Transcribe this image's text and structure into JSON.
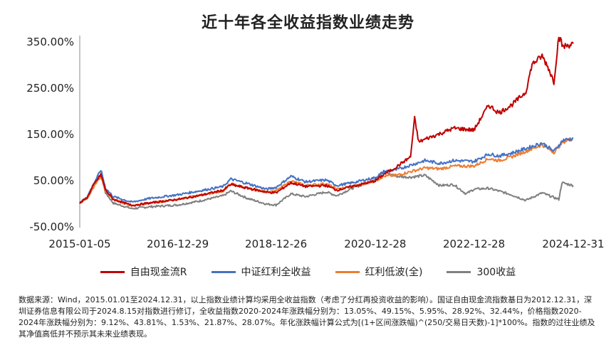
{
  "chart_data": {
    "type": "line",
    "title": "近十年各全收益指数业绩走势",
    "xlabel": "",
    "ylabel": "",
    "x_ticks": [
      "2015-01-05",
      "2016-12-29",
      "2018-12-26",
      "2020-12-28",
      "2022-12-28",
      "2024-12-31"
    ],
    "y_ticks": [
      "350.00%",
      "250.00%",
      "150.00%",
      "50.00%",
      "-50.00%"
    ],
    "ylim": [
      -50,
      350
    ],
    "xlim": [
      "2015-01-05",
      "2024-12-31"
    ],
    "grid": false,
    "legend_position": "bottom",
    "series": [
      {
        "name": "自由现金流R",
        "color": "#c00000",
        "points": [
          [
            "2015-01-05",
            0
          ],
          [
            "2015-03-01",
            12
          ],
          [
            "2015-04-15",
            38
          ],
          [
            "2015-06-10",
            62
          ],
          [
            "2015-07-15",
            28
          ],
          [
            "2015-09-10",
            8
          ],
          [
            "2016-01-25",
            -5
          ],
          [
            "2016-06-01",
            0
          ],
          [
            "2016-12-29",
            8
          ],
          [
            "2017-06-01",
            16
          ],
          [
            "2017-12-01",
            28
          ],
          [
            "2018-01-25",
            40
          ],
          [
            "2018-06-01",
            32
          ],
          [
            "2018-10-15",
            24
          ],
          [
            "2018-12-26",
            22
          ],
          [
            "2019-04-15",
            44
          ],
          [
            "2019-08-01",
            36
          ],
          [
            "2019-12-31",
            38
          ],
          [
            "2020-03-20",
            28
          ],
          [
            "2020-07-10",
            36
          ],
          [
            "2020-12-28",
            48
          ],
          [
            "2021-03-01",
            62
          ],
          [
            "2021-06-01",
            78
          ],
          [
            "2021-09-15",
            100
          ],
          [
            "2021-10-15",
            183
          ],
          [
            "2021-11-15",
            132
          ],
          [
            "2022-01-15",
            140
          ],
          [
            "2022-04-20",
            150
          ],
          [
            "2022-08-01",
            162
          ],
          [
            "2022-12-28",
            158
          ],
          [
            "2023-04-15",
            212
          ],
          [
            "2023-07-01",
            195
          ],
          [
            "2023-10-01",
            212
          ],
          [
            "2024-01-15",
            240
          ],
          [
            "2024-03-01",
            300
          ],
          [
            "2024-05-15",
            318
          ],
          [
            "2024-07-01",
            292
          ],
          [
            "2024-08-10",
            262
          ],
          [
            "2024-09-15",
            362
          ],
          [
            "2024-10-15",
            338
          ],
          [
            "2024-12-31",
            345
          ]
        ]
      },
      {
        "name": "中证红利全收益",
        "color": "#4472c4",
        "points": [
          [
            "2015-01-05",
            0
          ],
          [
            "2015-03-01",
            14
          ],
          [
            "2015-04-15",
            40
          ],
          [
            "2015-06-10",
            72
          ],
          [
            "2015-07-15",
            32
          ],
          [
            "2015-09-10",
            14
          ],
          [
            "2016-01-25",
            2
          ],
          [
            "2016-06-01",
            10
          ],
          [
            "2016-12-29",
            18
          ],
          [
            "2017-06-01",
            26
          ],
          [
            "2017-12-01",
            36
          ],
          [
            "2018-01-25",
            52
          ],
          [
            "2018-06-01",
            42
          ],
          [
            "2018-10-15",
            30
          ],
          [
            "2018-12-26",
            34
          ],
          [
            "2019-04-15",
            58
          ],
          [
            "2019-08-01",
            46
          ],
          [
            "2019-12-31",
            50
          ],
          [
            "2020-03-20",
            38
          ],
          [
            "2020-07-10",
            44
          ],
          [
            "2020-12-28",
            55
          ],
          [
            "2021-03-01",
            68
          ],
          [
            "2021-06-01",
            72
          ],
          [
            "2021-09-15",
            82
          ],
          [
            "2021-12-31",
            92
          ],
          [
            "2022-04-20",
            86
          ],
          [
            "2022-08-01",
            92
          ],
          [
            "2022-12-28",
            90
          ],
          [
            "2023-04-15",
            106
          ],
          [
            "2023-07-01",
            102
          ],
          [
            "2023-10-01",
            108
          ],
          [
            "2024-01-15",
            118
          ],
          [
            "2024-05-15",
            130
          ],
          [
            "2024-08-10",
            112
          ],
          [
            "2024-10-15",
            136
          ],
          [
            "2024-12-31",
            140
          ]
        ]
      },
      {
        "name": "红利低波(全)",
        "color": "#ed7d31",
        "points": [
          [
            "2015-01-05",
            0
          ],
          [
            "2015-03-01",
            10
          ],
          [
            "2015-04-15",
            34
          ],
          [
            "2015-06-10",
            58
          ],
          [
            "2015-07-15",
            26
          ],
          [
            "2015-09-10",
            8
          ],
          [
            "2016-01-25",
            -6
          ],
          [
            "2016-06-01",
            0
          ],
          [
            "2016-12-29",
            8
          ],
          [
            "2017-06-01",
            16
          ],
          [
            "2017-12-01",
            26
          ],
          [
            "2018-01-25",
            42
          ],
          [
            "2018-06-01",
            32
          ],
          [
            "2018-10-15",
            24
          ],
          [
            "2018-12-26",
            26
          ],
          [
            "2019-04-15",
            48
          ],
          [
            "2019-08-01",
            38
          ],
          [
            "2019-12-31",
            42
          ],
          [
            "2020-03-20",
            30
          ],
          [
            "2020-07-10",
            36
          ],
          [
            "2020-12-28",
            48
          ],
          [
            "2021-03-01",
            58
          ],
          [
            "2021-06-01",
            60
          ],
          [
            "2021-09-15",
            68
          ],
          [
            "2021-12-31",
            76
          ],
          [
            "2022-04-20",
            74
          ],
          [
            "2022-08-01",
            80
          ],
          [
            "2022-12-28",
            80
          ],
          [
            "2023-04-15",
            96
          ],
          [
            "2023-07-01",
            92
          ],
          [
            "2023-10-01",
            100
          ],
          [
            "2024-01-15",
            112
          ],
          [
            "2024-05-15",
            126
          ],
          [
            "2024-08-10",
            110
          ],
          [
            "2024-10-15",
            132
          ],
          [
            "2024-12-31",
            140
          ]
        ]
      },
      {
        "name": "300收益",
        "color": "#808080",
        "points": [
          [
            "2015-01-05",
            0
          ],
          [
            "2015-03-01",
            12
          ],
          [
            "2015-04-15",
            40
          ],
          [
            "2015-06-10",
            62
          ],
          [
            "2015-07-15",
            22
          ],
          [
            "2015-09-10",
            0
          ],
          [
            "2016-01-25",
            -12
          ],
          [
            "2016-06-01",
            -8
          ],
          [
            "2016-12-29",
            -4
          ],
          [
            "2017-06-01",
            4
          ],
          [
            "2017-12-01",
            16
          ],
          [
            "2018-01-25",
            26
          ],
          [
            "2018-06-01",
            10
          ],
          [
            "2018-10-15",
            -2
          ],
          [
            "2018-12-26",
            -4
          ],
          [
            "2019-04-15",
            20
          ],
          [
            "2019-08-01",
            14
          ],
          [
            "2019-12-31",
            24
          ],
          [
            "2020-03-20",
            16
          ],
          [
            "2020-07-10",
            32
          ],
          [
            "2020-12-28",
            50
          ],
          [
            "2021-02-18",
            68
          ],
          [
            "2021-06-01",
            58
          ],
          [
            "2021-09-15",
            56
          ],
          [
            "2021-12-31",
            60
          ],
          [
            "2022-04-20",
            38
          ],
          [
            "2022-08-01",
            40
          ],
          [
            "2022-10-31",
            20
          ],
          [
            "2022-12-28",
            30
          ],
          [
            "2023-04-15",
            32
          ],
          [
            "2023-07-01",
            26
          ],
          [
            "2023-10-01",
            18
          ],
          [
            "2024-01-15",
            6
          ],
          [
            "2024-05-15",
            22
          ],
          [
            "2024-09-15",
            8
          ],
          [
            "2024-10-08",
            44
          ],
          [
            "2024-12-31",
            38
          ]
        ]
      }
    ]
  },
  "note": "数据来源：Wind，2015.01.01至2024.12.31，以上指数业绩计算均采用全收益指数（考虑了分红再投资收益的影响）。国证自由现金流指数基日为2012.12.31，深圳证券信息有限公司于2024.8.15对指数进行修订，全收益指数2020-2024年涨跌幅分别为：13.05%、49.15%、5.95%、28.92%、32.44%，价格指数2020-2024年涨跌幅分别为：9.12%、43.81%、1.53%、21.87%、28.07%。年化涨跌幅计算公式为[(1+区间涨跌幅)^(250/交易日天数)-1]*100%。指数的过往业绩及其净值高低并不预示其未来业绩表现。"
}
